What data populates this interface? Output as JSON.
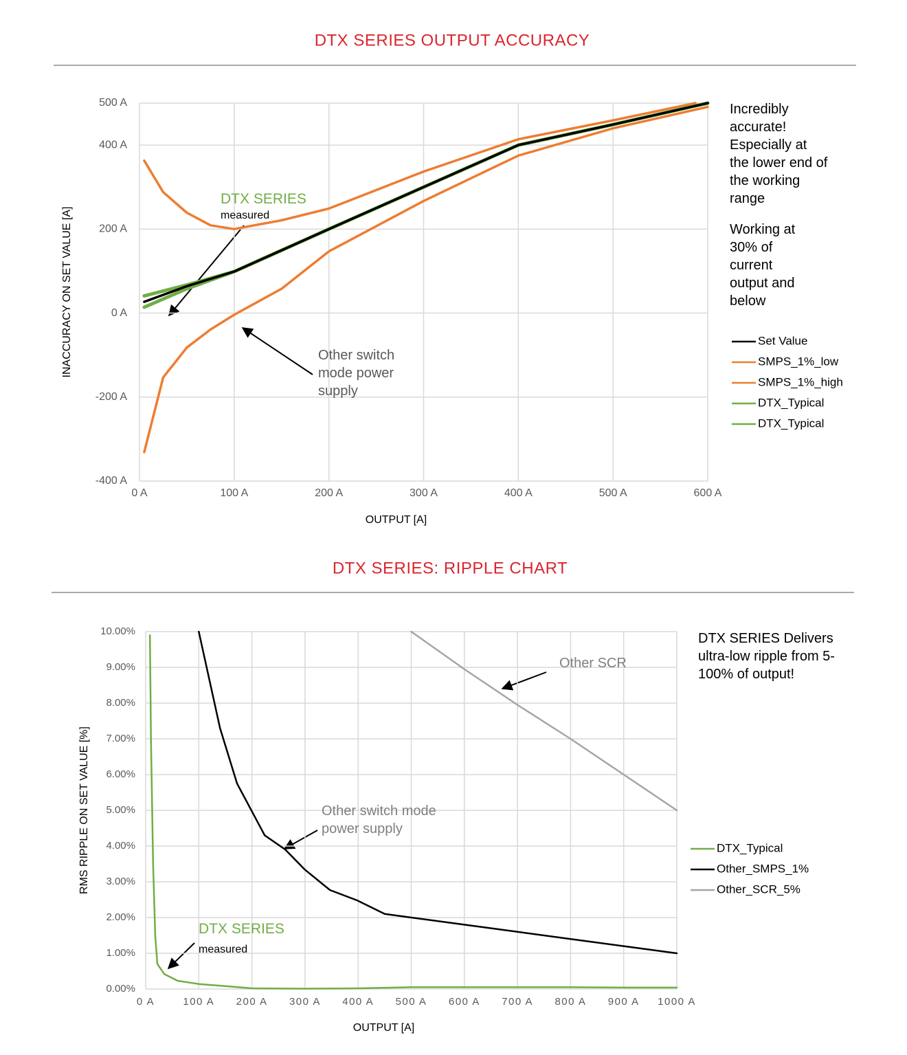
{
  "chart_data": [
    {
      "type": "line",
      "title": "DTX SERIES OUTPUT ACCURACY",
      "xlabel": "OUTPUT [A]",
      "ylabel": "INACCURACY ON SET VALUE [A]",
      "xlim": [
        0,
        600
      ],
      "ylim": [
        -400,
        500
      ],
      "xticks": [
        {
          "value": 0,
          "label": "0 A"
        },
        {
          "value": 100,
          "label": "100 A"
        },
        {
          "value": 200,
          "label": "200 A"
        },
        {
          "value": 300,
          "label": "300 A"
        },
        {
          "value": 400,
          "label": "400 A"
        },
        {
          "value": 500,
          "label": "500 A"
        },
        {
          "value": 600,
          "label": "600 A"
        }
      ],
      "yticks": [
        {
          "value": 500,
          "label": "500 A"
        },
        {
          "value": 400,
          "label": "400 A"
        },
        {
          "value": 200,
          "label": "200 A"
        },
        {
          "value": 0,
          "label": "0 A"
        },
        {
          "value": -200,
          "label": "-200 A"
        },
        {
          "value": -400,
          "label": "-400 A"
        }
      ],
      "grid": true,
      "legend": "right",
      "series": [
        {
          "name": "Set Value",
          "color": "#000000",
          "x": [
            5,
            50,
            100,
            200,
            300,
            400,
            500,
            600
          ],
          "values": [
            27,
            64,
            99,
            200,
            300,
            400,
            449,
            500
          ]
        },
        {
          "name": "SMPS_1%_low",
          "color": "#ed7d31",
          "x": [
            5,
            25,
            50,
            75,
            100,
            150,
            200,
            300,
            400,
            500,
            600
          ],
          "values": [
            -331,
            -153,
            -82,
            -39,
            -4,
            58,
            147,
            267,
            375,
            440,
            491
          ]
        },
        {
          "name": "SMPS_1%_high",
          "color": "#ed7d31",
          "x": [
            5,
            25,
            50,
            75,
            100,
            150,
            200,
            300,
            400,
            500,
            587
          ],
          "values": [
            363,
            288,
            239,
            209,
            200,
            221,
            249,
            337,
            414,
            459,
            500
          ]
        },
        {
          "name": "DTX_Typical",
          "color": "#70ad47",
          "x": [
            5,
            50,
            100,
            200,
            300,
            400,
            500,
            600
          ],
          "values": [
            41,
            67,
            99,
            200,
            300,
            400,
            449,
            500
          ]
        },
        {
          "name": "DTX_Typical",
          "color": "#70ad47",
          "x": [
            5,
            50,
            100,
            200,
            300,
            400,
            500,
            600
          ],
          "values": [
            14,
            58,
            99,
            200,
            300,
            400,
            449,
            500
          ]
        }
      ],
      "annotations": [
        "DTX SERIES",
        "measured",
        "Other switch mode power supply"
      ],
      "notes": [
        "Incredibly accurate! Especially at the lower end of the working range",
        "Working at 30% of current output and below"
      ]
    },
    {
      "type": "line",
      "title": "DTX SERIES: RIPPLE CHART",
      "xlabel": "OUTPUT [A]",
      "ylabel": "RMS RIPPLE ON SET VALUE [%]",
      "xlim": [
        0,
        1000
      ],
      "ylim": [
        0,
        10
      ],
      "xticks": [
        {
          "value": 0,
          "label": "0 A"
        },
        {
          "value": 100,
          "label": "100 A"
        },
        {
          "value": 200,
          "label": "200 A"
        },
        {
          "value": 300,
          "label": "300 A"
        },
        {
          "value": 400,
          "label": "400 A"
        },
        {
          "value": 500,
          "label": "500 A"
        },
        {
          "value": 600,
          "label": "600 A"
        },
        {
          "value": 700,
          "label": "700 A"
        },
        {
          "value": 800,
          "label": "800 A"
        },
        {
          "value": 900,
          "label": "900 A"
        },
        {
          "value": 1000,
          "label": "1000 A"
        }
      ],
      "yticks": [
        {
          "value": 0,
          "label": "0.00%"
        },
        {
          "value": 1,
          "label": "1.00%"
        },
        {
          "value": 2,
          "label": "2.00%"
        },
        {
          "value": 3,
          "label": "3.00%"
        },
        {
          "value": 4,
          "label": "4.00%"
        },
        {
          "value": 5,
          "label": "5.00%"
        },
        {
          "value": 6,
          "label": "6.00%"
        },
        {
          "value": 7,
          "label": "7.00%"
        },
        {
          "value": 8,
          "label": "8.00%"
        },
        {
          "value": 9,
          "label": "9.00%"
        },
        {
          "value": 10,
          "label": "10.00%"
        }
      ],
      "grid": true,
      "legend": "right",
      "series": [
        {
          "name": "DTX_Typical",
          "color": "#70ad47",
          "x": [
            8,
            10,
            14,
            18,
            22,
            35,
            60,
            100,
            150,
            200,
            300,
            400,
            500,
            600,
            700,
            800,
            900,
            1000
          ],
          "values": [
            9.9,
            7,
            3.5,
            1.5,
            0.7,
            0.42,
            0.23,
            0.14,
            0.08,
            0.02,
            0.01,
            0.02,
            0.05,
            0.05,
            0.05,
            0.05,
            0.04,
            0.04
          ]
        },
        {
          "name": "Other_SMPS_1%",
          "color": "#000000",
          "x": [
            100,
            140,
            172,
            224,
            263,
            299,
            347,
            398,
            450,
            500,
            600,
            700,
            800,
            900,
            1000
          ],
          "values": [
            10,
            7.3,
            5.75,
            4.3,
            3.9,
            3.35,
            2.77,
            2.48,
            2.1,
            2.0,
            1.8,
            1.6,
            1.4,
            1.2,
            1.0
          ]
        },
        {
          "name": "Other_SCR_5%",
          "color": "#a5a5a5",
          "x": [
            500,
            600,
            700,
            800,
            900,
            1000
          ],
          "values": [
            10,
            8.95,
            7.95,
            7,
            6,
            5
          ]
        }
      ],
      "annotations": [
        "Other SCR",
        "Other switch mode power supply",
        "DTX SERIES",
        "measured"
      ],
      "notes": [
        "DTX SERIES Delivers ultra-low ripple from 5-100% of output!"
      ]
    }
  ]
}
